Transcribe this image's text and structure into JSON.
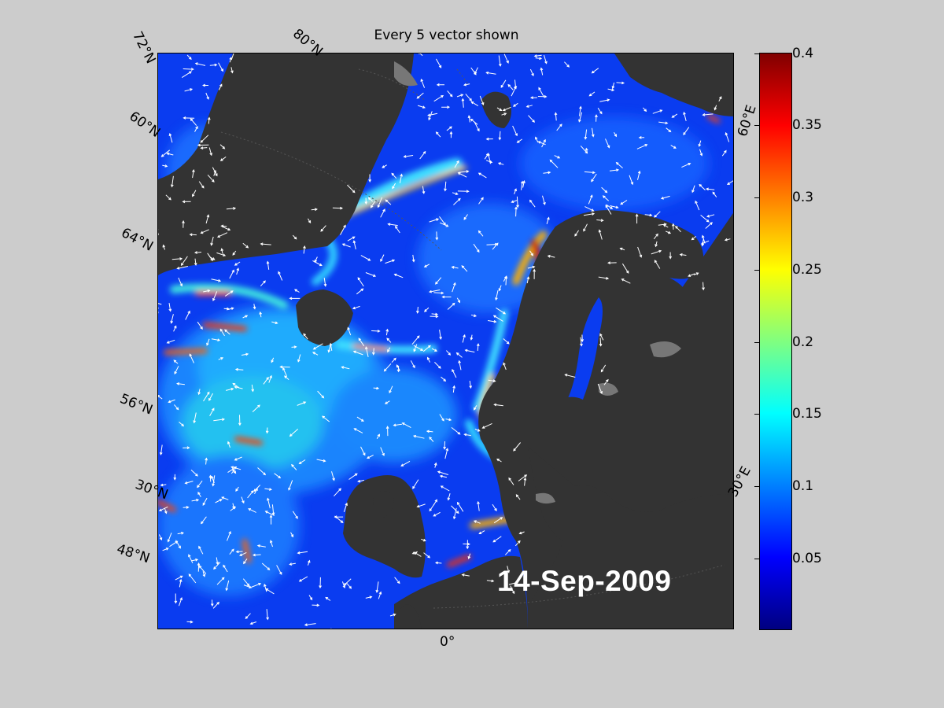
{
  "title": "Every 5 vector shown",
  "date_stamp": "14-Sep-2009",
  "latitude_labels": [
    "72°N",
    "60°N",
    "64°N",
    "56°N",
    "30°N",
    "48°N"
  ],
  "other_labels": {
    "lat80": "80°N",
    "lon0": "0°",
    "lon30e": "30°E",
    "lon60e": "60°E"
  },
  "colorbar": {
    "ticks": [
      "0.4",
      "0.35",
      "0.3",
      "0.25",
      "0.2",
      "0.15",
      "0.1",
      "0.05"
    ],
    "min": 0,
    "max": 0.4,
    "colormap": "jet"
  },
  "colors": {
    "background": "#cccccc",
    "land": "#333333",
    "sea_ice": "#777777",
    "ocean_low": "#0a3cf0",
    "vector_arrow": "#ffffff"
  }
}
